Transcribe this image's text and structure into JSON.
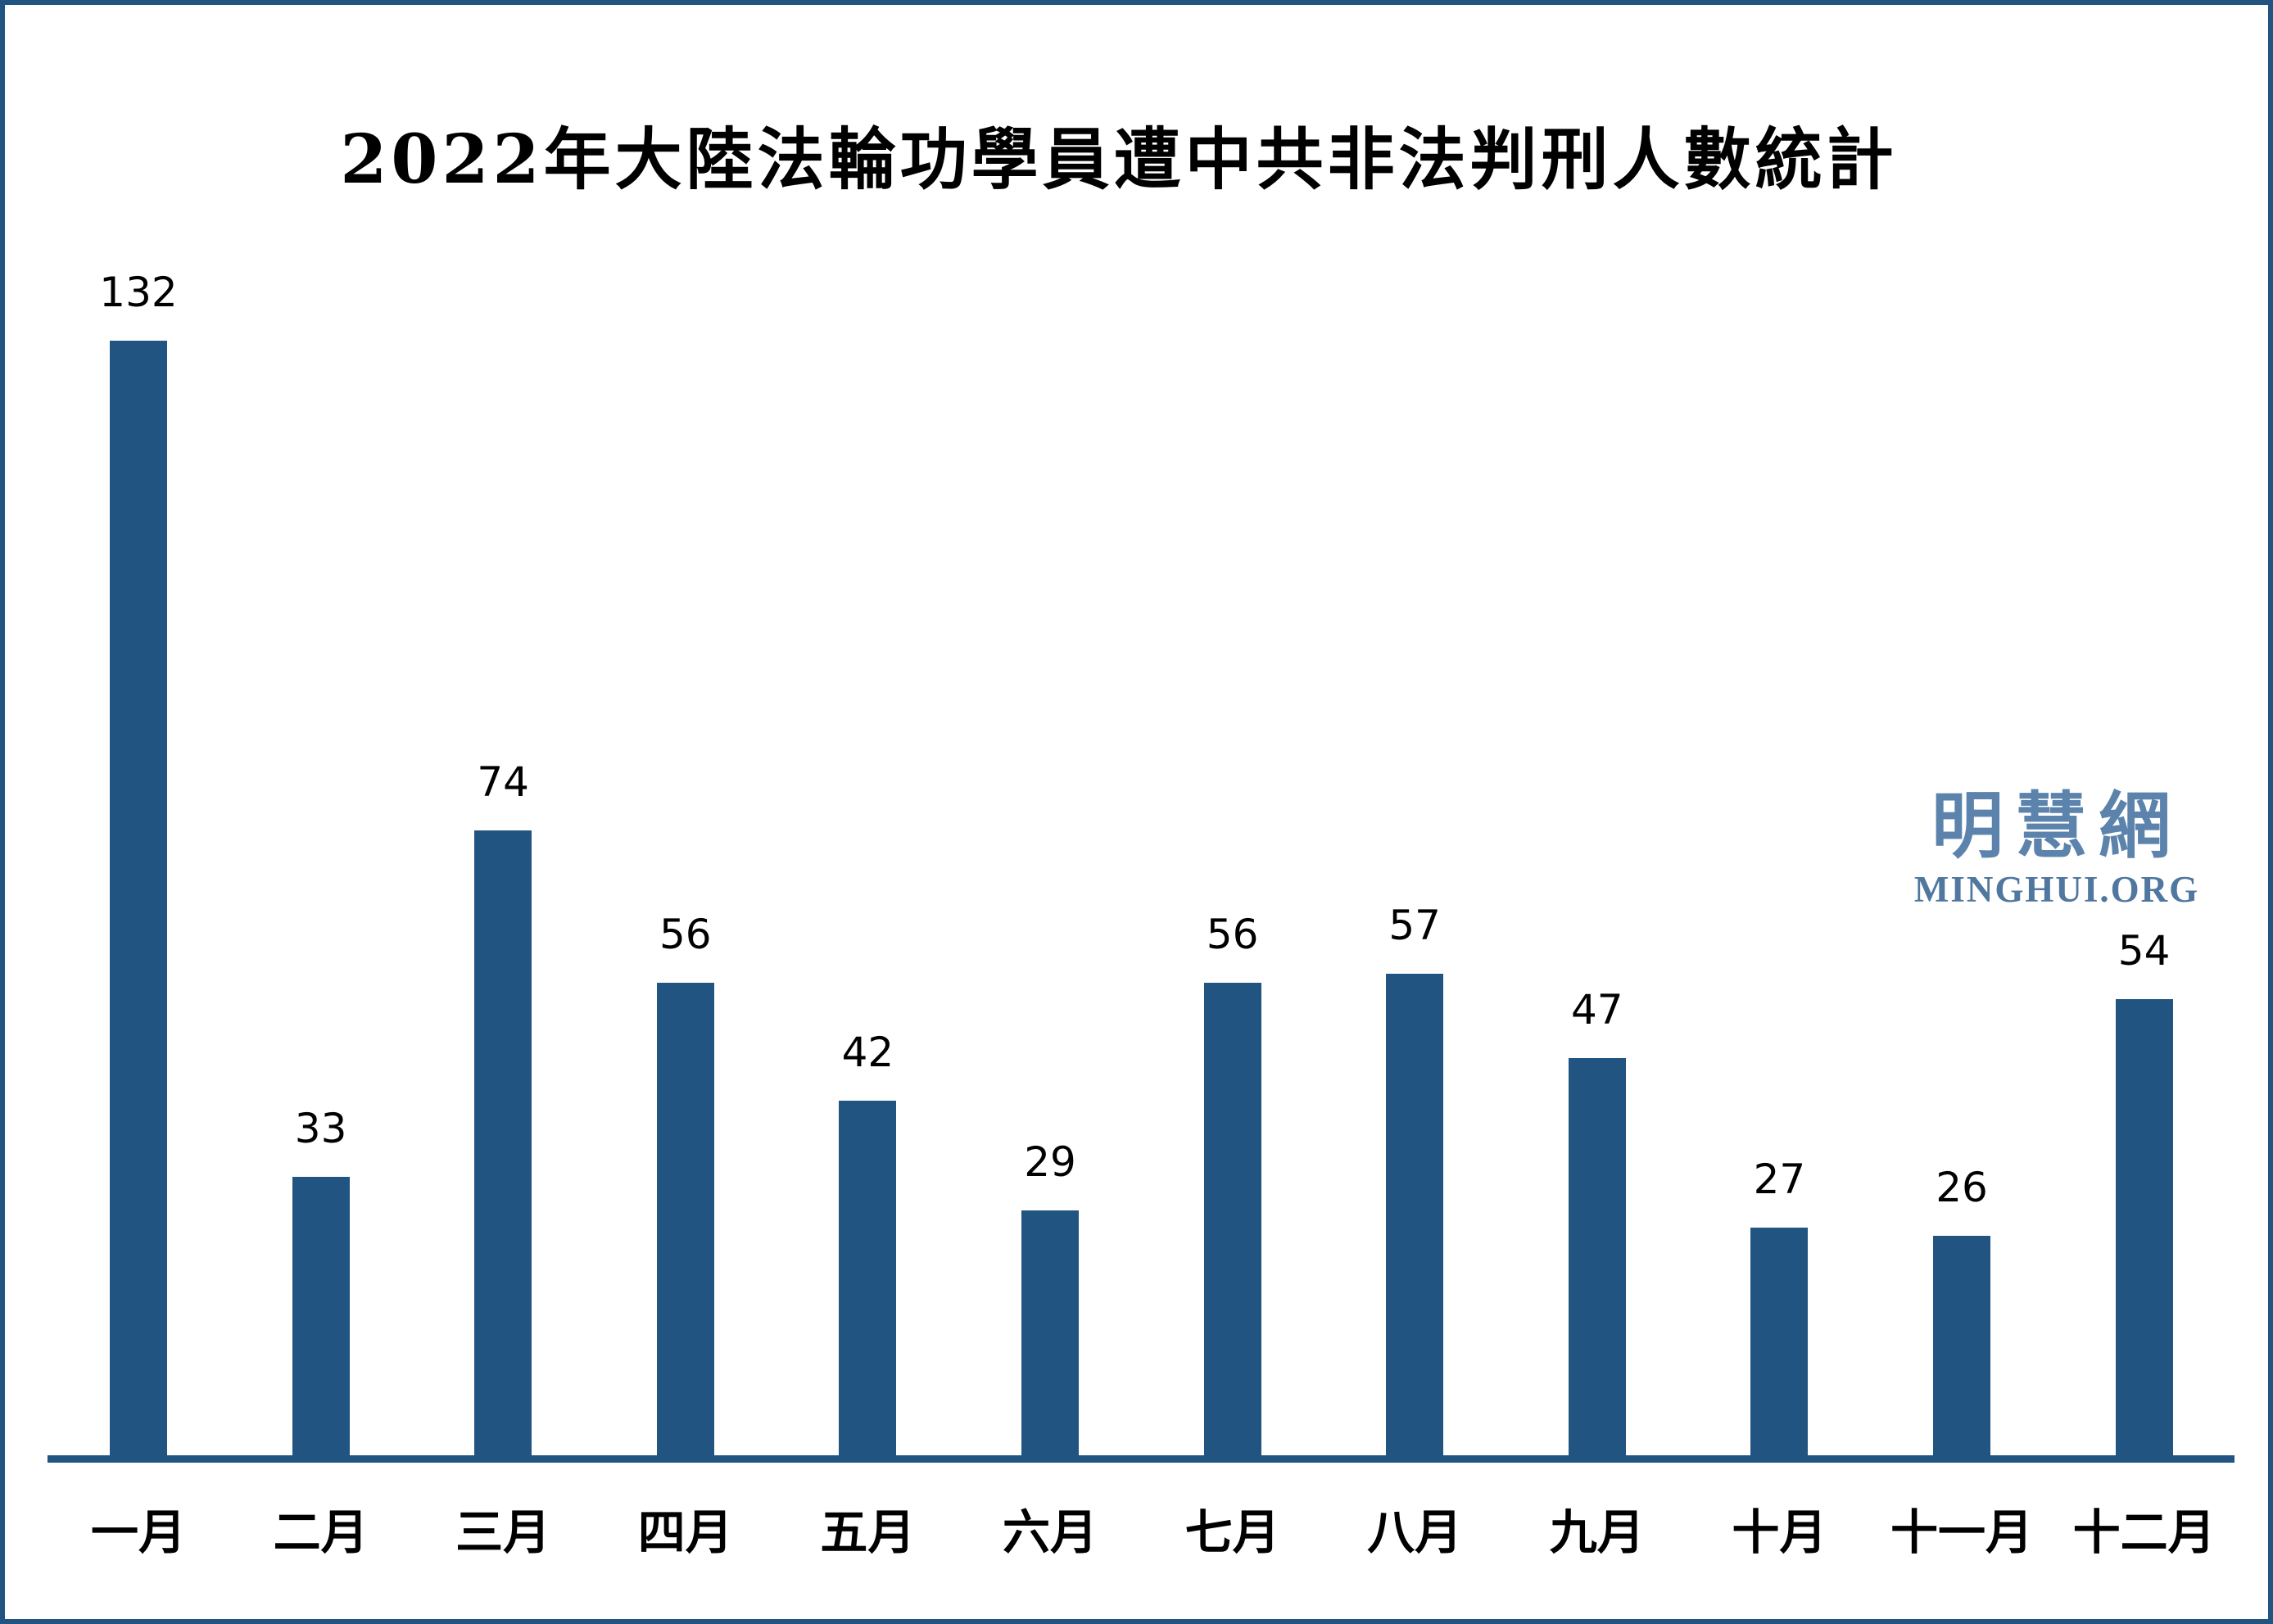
{
  "title": "2022年大陸法輪功學員遭中共非法判刑人數統計",
  "watermark": {
    "cjk": "明慧網",
    "latin": "MINGHUI.ORG",
    "cjk_color": "#5C83AC",
    "latin_color": "#4F779F"
  },
  "colors": {
    "bar": "#215480",
    "axis": "#215480",
    "frame_border": "#215480",
    "background": "#FFFFFF",
    "label_text": "#000000"
  },
  "chart_data": {
    "type": "bar",
    "title": "2022年大陸法輪功學員遭中共非法判刑人數統計",
    "categories": [
      "一月",
      "二月",
      "三月",
      "四月",
      "五月",
      "六月",
      "七月",
      "八月",
      "九月",
      "十月",
      "十一月",
      "十二月"
    ],
    "values": [
      132,
      33,
      74,
      56,
      42,
      29,
      56,
      57,
      47,
      27,
      26,
      54
    ],
    "xlabel": "",
    "ylabel": "",
    "ylim": [
      0,
      140
    ],
    "grid": false,
    "legend": false,
    "data_labels": true,
    "bar_color": "#215480",
    "axis_line_color": "#215480"
  }
}
